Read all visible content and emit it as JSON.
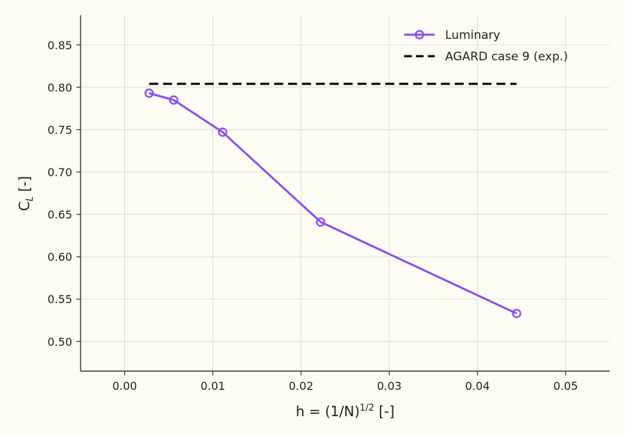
{
  "chart_data": {
    "type": "line",
    "xlabel_main": "h = (1/N)",
    "xlabel_sup": "1/2",
    "xlabel_tail": " [-]",
    "ylabel_main": "C",
    "ylabel_sub": "L",
    "ylabel_tail": " [-]",
    "xlim": [
      -0.005,
      0.055
    ],
    "ylim": [
      0.465,
      0.885
    ],
    "xticks": [
      0.0,
      0.01,
      0.02,
      0.03,
      0.04,
      0.05
    ],
    "xtick_labels": [
      "0.00",
      "0.01",
      "0.02",
      "0.03",
      "0.04",
      "0.05"
    ],
    "yticks": [
      0.5,
      0.55,
      0.6,
      0.65,
      0.7,
      0.75,
      0.8,
      0.85
    ],
    "ytick_labels": [
      "0.50",
      "0.55",
      "0.60",
      "0.65",
      "0.70",
      "0.75",
      "0.80",
      "0.85"
    ],
    "grid": true,
    "legend_position": "top-right",
    "series": [
      {
        "name": "Luminary",
        "color": "#8b4ff0",
        "style": "solid-circle-markers",
        "x": [
          0.00278,
          0.00556,
          0.01111,
          0.02222,
          0.04444
        ],
        "y": [
          0.793,
          0.785,
          0.747,
          0.641,
          0.533
        ]
      },
      {
        "name": "AGARD case 9 (exp.)",
        "color": "#000000",
        "style": "dashed",
        "x": [
          0.00278,
          0.04444
        ],
        "y": [
          0.804,
          0.804
        ]
      }
    ]
  }
}
